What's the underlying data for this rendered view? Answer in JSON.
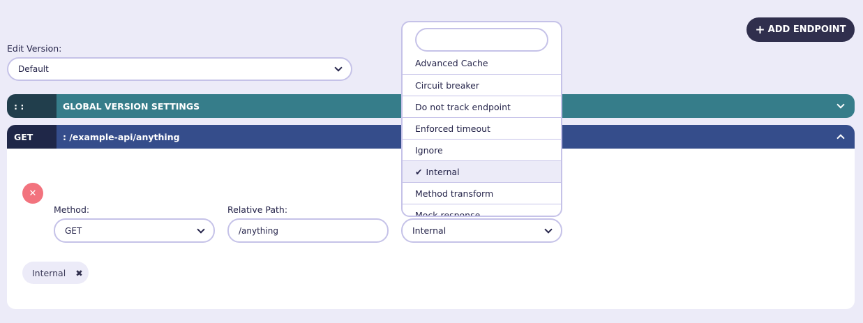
{
  "toolbar": {
    "add_endpoint_label": "ADD ENDPOINT",
    "add_icon": "plus-icon"
  },
  "version": {
    "label": "Edit Version:",
    "selected": "Default"
  },
  "global_settings": {
    "handle": ": :",
    "title": "GLOBAL VERSION SETTINGS",
    "color": "#367d8a"
  },
  "endpoint": {
    "method_badge": "GET",
    "path": ": /example-api/anything",
    "color": "#354d8b",
    "method_label": "Method:",
    "method_value": "GET",
    "path_label": "Relative Path:",
    "path_value": "/anything",
    "plugin_value": "Internal",
    "tags": [
      {
        "label": "Internal"
      }
    ]
  },
  "dropdown": {
    "search_value": "",
    "options": [
      {
        "label": "Advanced Cache"
      },
      {
        "label": "Circuit breaker"
      },
      {
        "label": "Do not track endpoint"
      },
      {
        "label": "Enforced timeout"
      },
      {
        "label": "Ignore"
      },
      {
        "label": "Internal",
        "selected": true
      },
      {
        "label": "Method transform"
      },
      {
        "label": "Mock response"
      }
    ]
  }
}
